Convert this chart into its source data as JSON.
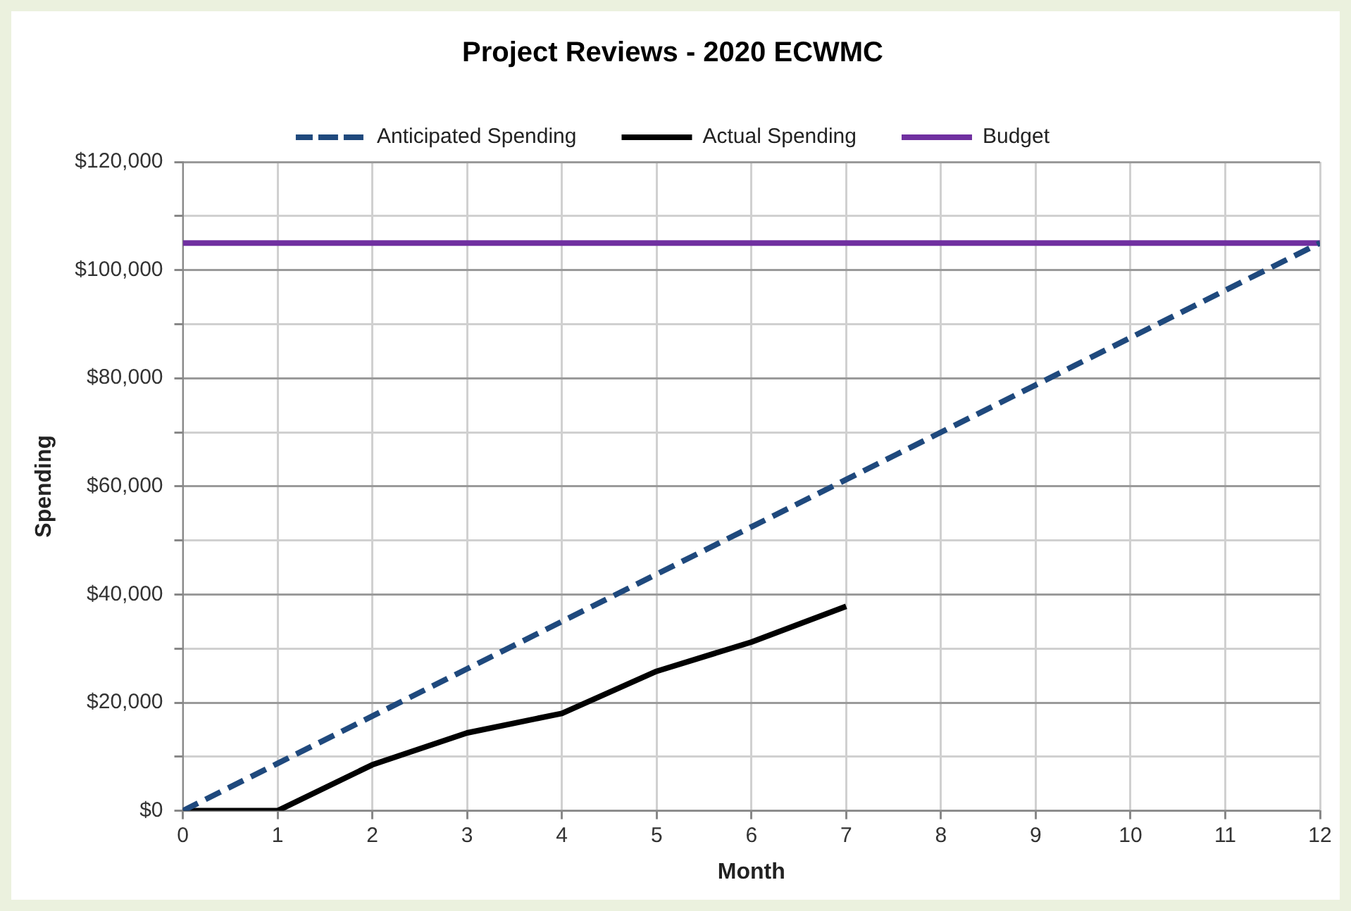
{
  "chart_data": {
    "type": "line",
    "title": "Project Reviews - 2020 ECWMC",
    "xlabel": "Month",
    "ylabel": "Spending",
    "series": [
      {
        "name": "Anticipated Spending",
        "color": "#1f497d",
        "line_style": "dashed",
        "x": [
          0,
          1,
          2,
          3,
          4,
          5,
          6,
          7,
          8,
          9,
          10,
          11,
          12
        ],
        "values": [
          0,
          8750,
          17500,
          26250,
          35000,
          43750,
          52500,
          61250,
          70000,
          78750,
          87500,
          96250,
          105000
        ]
      },
      {
        "name": "Actual Spending",
        "color": "#000000",
        "line_style": "solid",
        "x": [
          0,
          1,
          2,
          3,
          4,
          5,
          6,
          7
        ],
        "values": [
          0,
          0,
          8500,
          14400,
          18000,
          25800,
          31200,
          37800
        ]
      },
      {
        "name": "Budget",
        "color": "#7030a0",
        "line_style": "solid",
        "x": [
          0,
          12
        ],
        "values": [
          105000,
          105000
        ]
      }
    ],
    "xlim": [
      0,
      12
    ],
    "xticks": [
      0,
      1,
      2,
      3,
      4,
      5,
      6,
      7,
      8,
      9,
      10,
      11,
      12
    ],
    "ylim": [
      0,
      120000
    ],
    "yticks": [
      {
        "value": 0,
        "label": "$0"
      },
      {
        "value": 10000,
        "label": null
      },
      {
        "value": 20000,
        "label": "$20,000"
      },
      {
        "value": 30000,
        "label": null
      },
      {
        "value": 40000,
        "label": "$40,000"
      },
      {
        "value": 50000,
        "label": null
      },
      {
        "value": 60000,
        "label": "$60,000"
      },
      {
        "value": 70000,
        "label": null
      },
      {
        "value": 80000,
        "label": "$80,000"
      },
      {
        "value": 90000,
        "label": null
      },
      {
        "value": 100000,
        "label": "$100,000"
      },
      {
        "value": 110000,
        "label": null
      },
      {
        "value": 120000,
        "label": "$120,000"
      }
    ],
    "grid": true,
    "legend": "top",
    "marker": "none"
  }
}
